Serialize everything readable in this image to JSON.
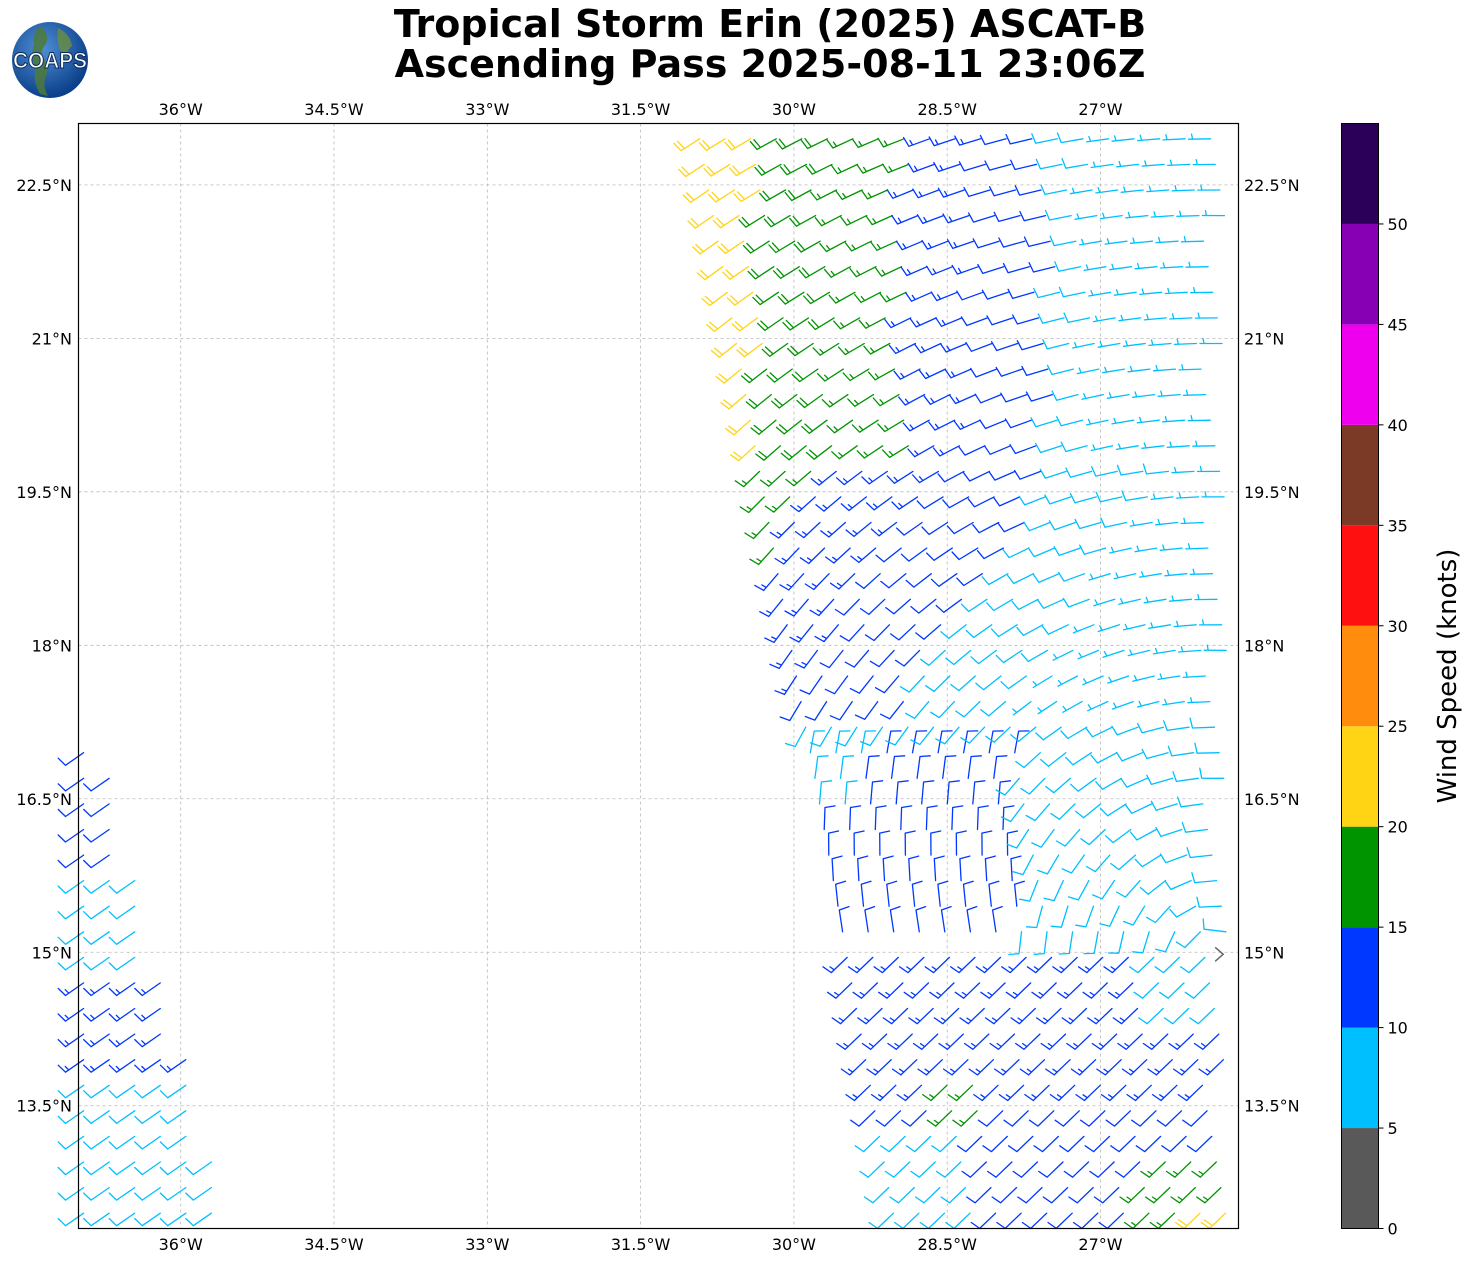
{
  "title": {
    "line1": "Tropical Storm Erin (2025) ASCAT-B",
    "line2": "Ascending Pass 2025-08-11 23:06Z"
  },
  "logo": {
    "text": "COAPS",
    "icon": "globe-logo-icon"
  },
  "chart_data": {
    "type": "wind-barb-map",
    "title": "Tropical Storm Erin (2025) ASCAT-B Ascending Pass 2025-08-11 23:06Z",
    "xlim": [
      -37.0,
      -25.65
    ],
    "ylim": [
      12.3,
      23.1
    ],
    "x_ticks": [
      -36,
      -34.5,
      -33,
      -31.5,
      -30,
      -28.5,
      -27
    ],
    "x_tick_labels": [
      "36°W",
      "34.5°W",
      "33°W",
      "31.5°W",
      "30°W",
      "28.5°W",
      "27°W"
    ],
    "y_ticks": [
      22.5,
      21,
      19.5,
      18,
      16.5,
      15,
      13.5
    ],
    "y_tick_labels": [
      "22.5°N",
      "21°N",
      "19.5°N",
      "18°N",
      "16.5°N",
      "15°N",
      "13.5°N"
    ],
    "grid": true,
    "colorbar": {
      "label": "Wind Speed (knots)",
      "bounds": [
        0,
        5,
        10,
        15,
        20,
        25,
        30,
        35,
        40,
        45,
        50,
        55
      ],
      "tick_values": [
        0,
        5,
        10,
        15,
        20,
        25,
        30,
        35,
        40,
        45,
        50
      ],
      "tick_labels": [
        "0",
        "5",
        "10",
        "15",
        "20",
        "25",
        "30",
        "35",
        "40",
        "45",
        "50"
      ],
      "colors": [
        "#595959",
        "#00bfff",
        "#0038ff",
        "#009400",
        "#ffd414",
        "#ff8c0d",
        "#ff1010",
        "#7b3a26",
        "#ee00ee",
        "#8800b3",
        "#2b0058"
      ]
    },
    "storm_center": {
      "lon": -25.8,
      "lat": 14.98
    },
    "swaths": [
      {
        "name": "east swath",
        "lat_range": [
          12.3,
          23.1
        ],
        "west_edge_lon_at_top": -30.95,
        "west_edge_lon_at_bottom": -29.0,
        "east_edge_lon": -25.65
      },
      {
        "name": "west swath",
        "lat_range": [
          12.3,
          17.0
        ],
        "west_edge_lon": -37.0,
        "east_edge_lon_at_top": -36.75,
        "east_edge_lon_at_bottom": -35.5
      }
    ],
    "wind_regions": [
      {
        "area": "northwest swath edge",
        "speed_knots_range": [
          20,
          25
        ]
      },
      {
        "area": "north-central",
        "speed_knots_range": [
          15,
          20
        ]
      },
      {
        "area": "northeast and central swath",
        "speed_knots_range": [
          10,
          15
        ]
      },
      {
        "area": "east near 16-19°N",
        "speed_knots_range": [
          5,
          10
        ]
      },
      {
        "area": "southeast corner",
        "speed_knots_range": [
          15,
          25
        ]
      },
      {
        "area": "west swath",
        "speed_knots_range": [
          5,
          15
        ]
      }
    ]
  }
}
